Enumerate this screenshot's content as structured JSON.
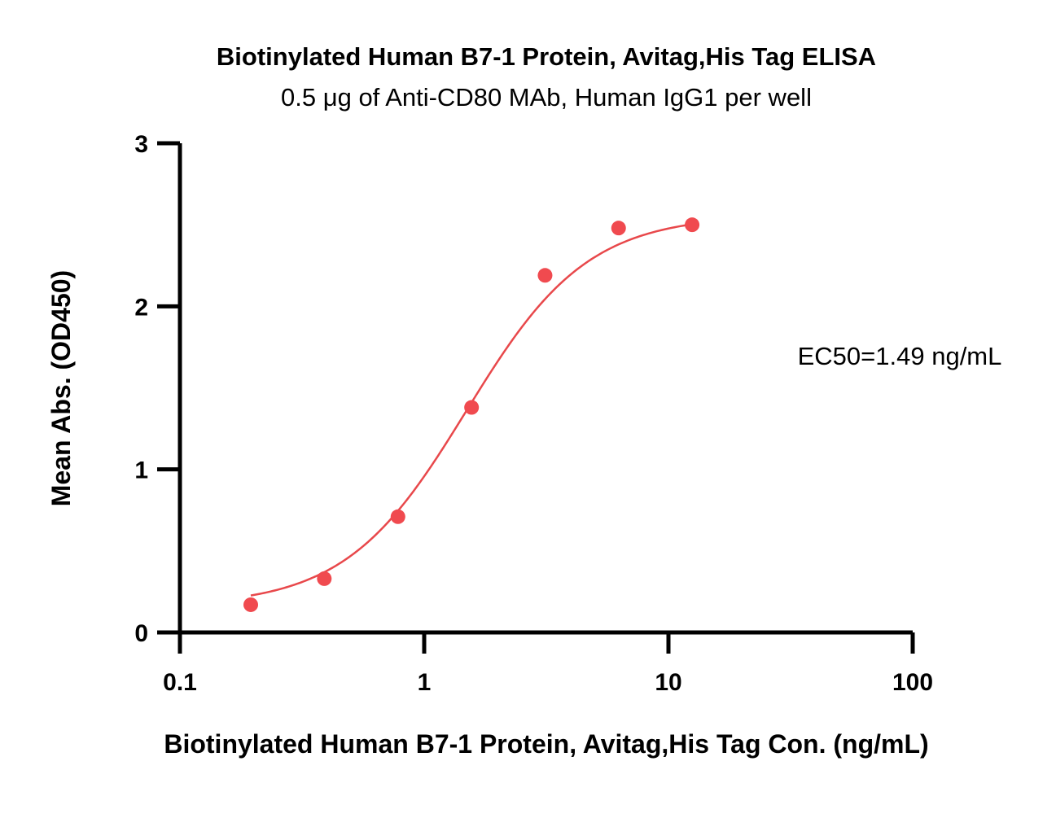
{
  "chart_data": {
    "type": "scatter",
    "title": "Biotinylated Human B7-1 Protein, Avitag,His Tag ELISA",
    "subtitle": "0.5 μg of Anti-CD80 MAb, Human IgG1 per well",
    "xlabel": "Biotinylated Human B7-1 Protein, Avitag,His Tag Con. (ng/mL)",
    "ylabel": "Mean Abs. (OD450)",
    "x_scale": "log",
    "xlim": [
      0.1,
      100
    ],
    "ylim": [
      0,
      3
    ],
    "x_ticks": [
      0.1,
      1,
      10,
      100
    ],
    "x_tick_labels": [
      "0.1",
      "1",
      "10",
      "100"
    ],
    "y_ticks": [
      0,
      1,
      2,
      3
    ],
    "y_tick_labels": [
      "0",
      "1",
      "2",
      "3"
    ],
    "grid": false,
    "legend": "none",
    "annotation": "EC50=1.49 ng/mL",
    "series": [
      {
        "color": "#f04a4f",
        "x": [
          0.195,
          0.39,
          0.781,
          1.563,
          3.125,
          6.25,
          12.5
        ],
        "y": [
          0.17,
          0.33,
          0.71,
          1.38,
          2.19,
          2.48,
          2.5
        ]
      }
    ],
    "fit": {
      "model": "4PL",
      "bottom": 0.16,
      "top": 2.56,
      "ec50": 1.49,
      "hill": 1.75,
      "x_range": [
        0.195,
        12.5
      ],
      "color": "#e8484b"
    }
  }
}
